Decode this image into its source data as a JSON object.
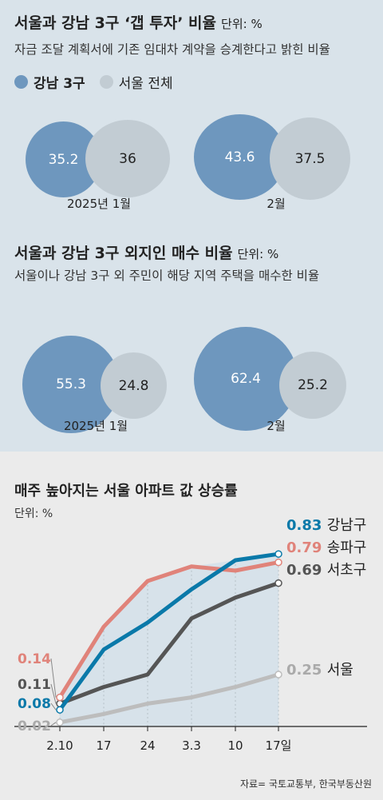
{
  "colors": {
    "gangnam": "#6e97be",
    "seoul": "#c2ccd3",
    "panel_top": "#d9e3ea",
    "panel_bottom": "#ebebeb",
    "line_gangnam": "#0a79a9",
    "line_songpa": "#e0837a",
    "line_seocho": "#555555",
    "line_seoul": "#bdbdbd"
  },
  "gap": {
    "title": "서울과 강남 3구 ‘갭 투자’ 비율",
    "unit": "단위: %",
    "subtitle": "자금 조달 계획서에 기존 임대차 계약을 승계한다고 밝힌 비율",
    "legend": [
      "강남 3구",
      "서울 전체"
    ],
    "groups": [
      {
        "label": "2025년 1월",
        "gangnam": "35.2",
        "seoul": "36"
      },
      {
        "label": "2월",
        "gangnam": "43.6",
        "seoul": "37.5"
      }
    ]
  },
  "outsider": {
    "title": "서울과 강남 3구 외지인 매수 비율",
    "unit": "단위: %",
    "subtitle": "서울이나 강남 3구 외 주민이 해당 지역 주택을 매수한 비율",
    "groups": [
      {
        "label": "2025년 1월",
        "gangnam": "55.3",
        "seoul": "24.8"
      },
      {
        "label": "2월",
        "gangnam": "62.4",
        "seoul": "25.2"
      }
    ]
  },
  "weekly": {
    "title": "매주 높아지는 서울 아파트 값 상승률",
    "unit": "단위: %",
    "source": "자료= 국토교통부, 한국부동산원"
  },
  "chart_data": [
    {
      "type": "bubble",
      "title": "서울과 강남 3구 ‘갭 투자’ 비율",
      "unit": "%",
      "categories": [
        "2025년 1월",
        "2월"
      ],
      "series": [
        {
          "name": "강남 3구",
          "values": [
            35.2,
            43.6
          ]
        },
        {
          "name": "서울 전체",
          "values": [
            36,
            37.5
          ]
        }
      ]
    },
    {
      "type": "bubble",
      "title": "서울과 강남 3구 외지인 매수 비율",
      "unit": "%",
      "categories": [
        "2025년 1월",
        "2월"
      ],
      "series": [
        {
          "name": "강남 3구",
          "values": [
            55.3,
            62.4
          ]
        },
        {
          "name": "서울 전체",
          "values": [
            24.8,
            25.2
          ]
        }
      ]
    },
    {
      "type": "line",
      "title": "매주 높아지는 서울 아파트 값 상승률",
      "unit": "%",
      "categories": [
        "2.10",
        "17",
        "24",
        "3.3",
        "10",
        "17일"
      ],
      "ylim": [
        0,
        0.9
      ],
      "grid": false,
      "series": [
        {
          "name": "강남구",
          "values": [
            0.08,
            0.37,
            0.5,
            0.66,
            0.8,
            0.83
          ],
          "first_label": "0.08",
          "last_label": "0.83"
        },
        {
          "name": "송파구",
          "values": [
            0.14,
            0.48,
            0.7,
            0.77,
            0.75,
            0.79
          ],
          "first_label": "0.14",
          "last_label": "0.79"
        },
        {
          "name": "서초구",
          "values": [
            0.11,
            0.19,
            0.25,
            0.52,
            0.62,
            0.69
          ],
          "first_label": "0.11",
          "last_label": "0.69"
        },
        {
          "name": "서울",
          "values": [
            0.02,
            0.06,
            0.11,
            0.14,
            0.19,
            0.25
          ],
          "first_label": "0.02",
          "last_label": "0.25"
        }
      ]
    }
  ]
}
